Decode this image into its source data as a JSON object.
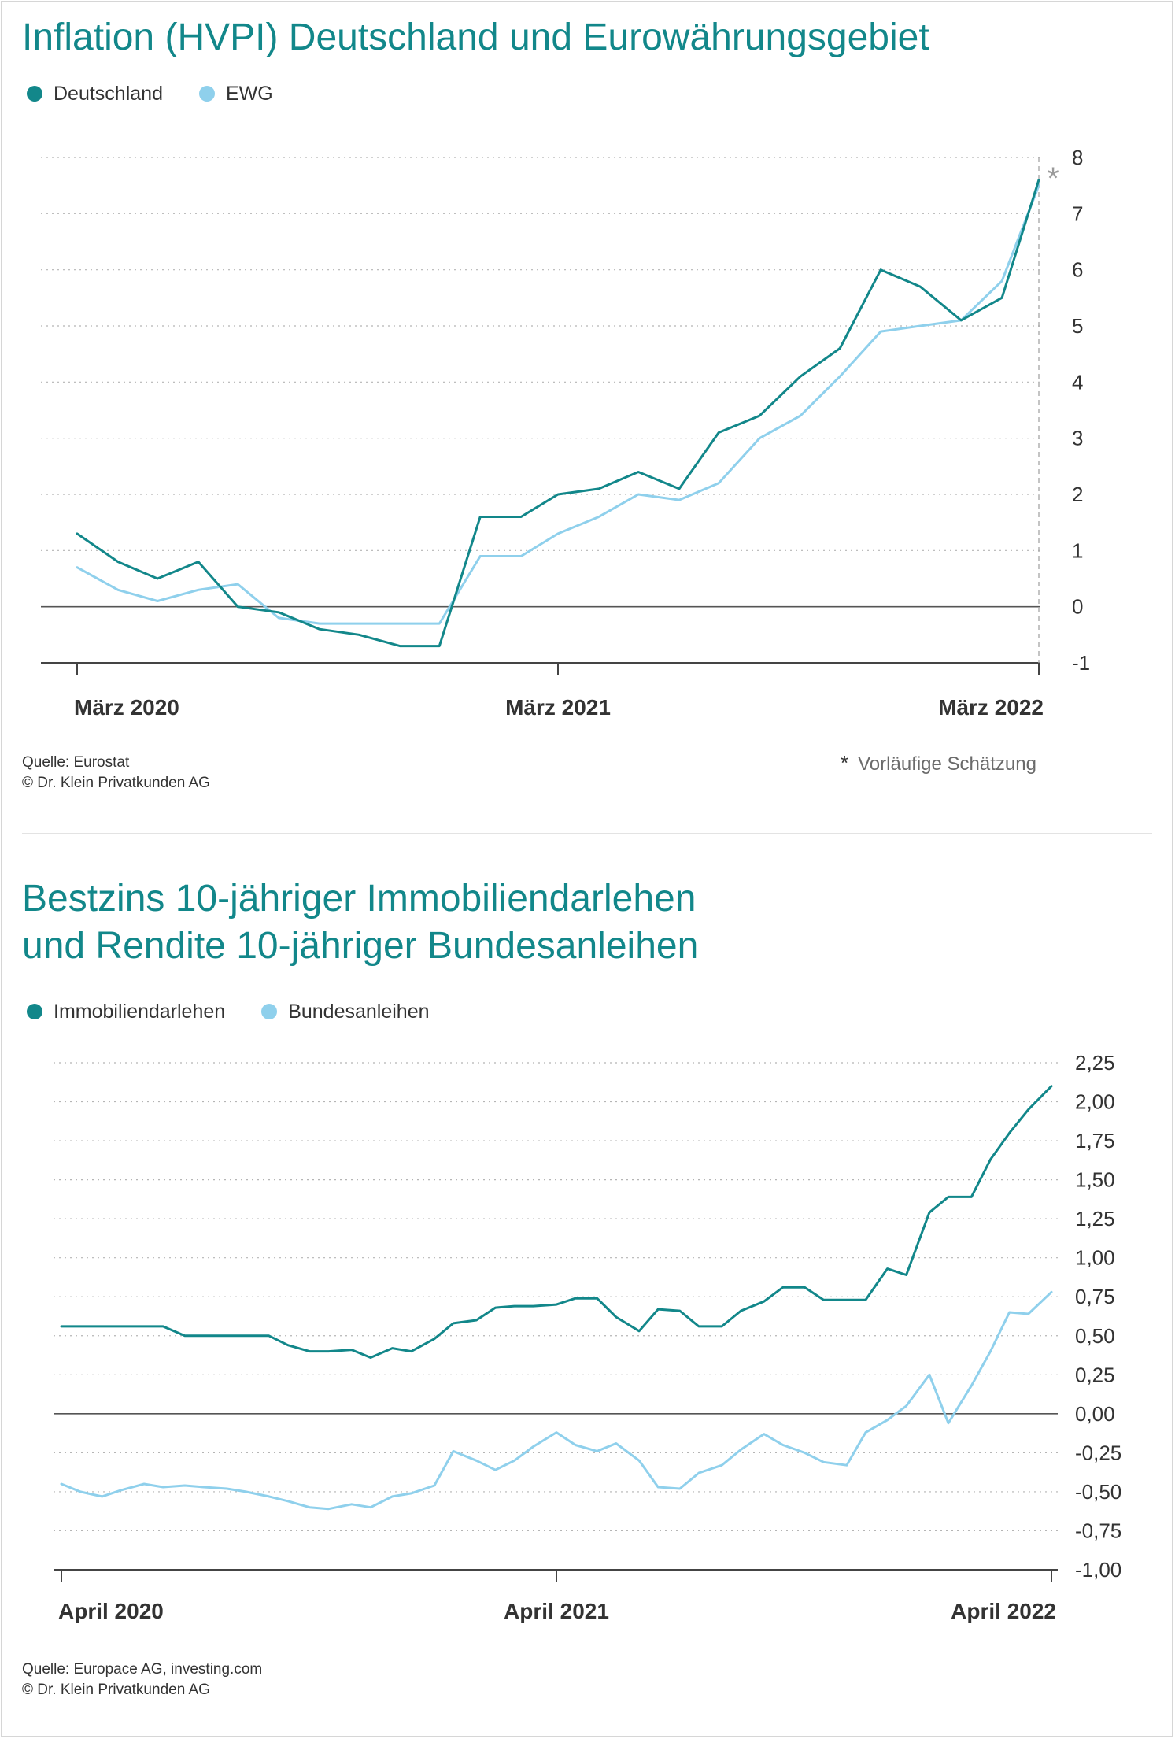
{
  "colors": {
    "primary": "#12878a",
    "secondary": "#8fd0ec",
    "title": "#12878a",
    "grid": "#b5b5b5",
    "axis": "#555555",
    "estimate_marker": "#9a9a9a"
  },
  "chart_data": [
    {
      "type": "line",
      "title": "Inflation (HVPI) Deutschland und Eurowährungsgebiet",
      "legend": "top-left",
      "grid": true,
      "ylim": [
        -1,
        8
      ],
      "yticks": [
        -1,
        0,
        1,
        2,
        3,
        4,
        5,
        6,
        7,
        8
      ],
      "ytick_labels": [
        "-1",
        "0",
        "1",
        "2",
        "3",
        "4",
        "5",
        "6",
        "7",
        "8"
      ],
      "x": [
        "2020-03",
        "2020-04",
        "2020-05",
        "2020-06",
        "2020-07",
        "2020-08",
        "2020-09",
        "2020-10",
        "2020-11",
        "2020-12",
        "2021-01",
        "2021-02",
        "2021-03",
        "2021-04",
        "2021-05",
        "2021-06",
        "2021-07",
        "2021-08",
        "2021-09",
        "2021-10",
        "2021-11",
        "2021-12",
        "2022-01",
        "2022-02",
        "2022-03"
      ],
      "xtick_labels": [
        "März 2020",
        "März 2021",
        "März 2022"
      ],
      "xtick_positions": [
        "2020-03",
        "2021-03",
        "2022-03"
      ],
      "series": [
        {
          "name": "Deutschland",
          "color": "#12878a",
          "values": [
            1.3,
            0.8,
            0.5,
            0.8,
            0.0,
            -0.1,
            -0.4,
            -0.5,
            -0.7,
            -0.7,
            1.6,
            1.6,
            2.0,
            2.1,
            2.4,
            2.1,
            3.1,
            3.4,
            4.1,
            4.6,
            6.0,
            5.7,
            5.1,
            5.5,
            7.6
          ]
        },
        {
          "name": "EWG",
          "color": "#8fd0ec",
          "values": [
            0.7,
            0.3,
            0.1,
            0.3,
            0.4,
            -0.2,
            -0.3,
            -0.3,
            -0.3,
            -0.3,
            0.9,
            0.9,
            1.3,
            1.6,
            2.0,
            1.9,
            2.2,
            3.0,
            3.4,
            4.1,
            4.9,
            5.0,
            5.1,
            5.8,
            7.5
          ]
        }
      ],
      "estimate_marker": "*",
      "note": {
        "symbol": "*",
        "text": "Vorläufige Schätzung"
      },
      "source": "Quelle: Eurostat",
      "copyright": "© Dr. Klein Privatkunden AG"
    },
    {
      "type": "line",
      "title_lines": [
        "Bestzins 10-jähriger Immobiliendarlehen",
        "und Rendite 10-jähriger Bundesanleihen"
      ],
      "legend": "top-left",
      "grid": true,
      "ylim": [
        -1.0,
        2.25
      ],
      "yticks": [
        -1.0,
        -0.75,
        -0.5,
        -0.25,
        0.0,
        0.25,
        0.5,
        0.75,
        1.0,
        1.25,
        1.5,
        1.75,
        2.0,
        2.25
      ],
      "ytick_labels": [
        "-1,00",
        "-0,75",
        "-0,50",
        "-0,25",
        "0,00",
        "0,25",
        "0,50",
        "0,75",
        "1,00",
        "1,25",
        "1,50",
        "1,75",
        "2,00",
        "2,25"
      ],
      "x": [
        "2020-04-01",
        "2020-04-15",
        "2020-05-01",
        "2020-05-15",
        "2020-06-01",
        "2020-06-15",
        "2020-07-01",
        "2020-07-15",
        "2020-08-01",
        "2020-08-15",
        "2020-09-01",
        "2020-09-15",
        "2020-10-01",
        "2020-10-15",
        "2020-11-01",
        "2020-11-15",
        "2020-12-01",
        "2020-12-15",
        "2021-01-01",
        "2021-01-15",
        "2021-02-01",
        "2021-02-15",
        "2021-03-01",
        "2021-03-15",
        "2021-04-01",
        "2021-04-15",
        "2021-05-01",
        "2021-05-15",
        "2021-06-01",
        "2021-06-15",
        "2021-07-01",
        "2021-07-15",
        "2021-08-01",
        "2021-08-15",
        "2021-09-01",
        "2021-09-15",
        "2021-10-01",
        "2021-10-15",
        "2021-11-01",
        "2021-11-15",
        "2021-12-01",
        "2021-12-15",
        "2022-01-01",
        "2022-01-15",
        "2022-02-01",
        "2022-02-15",
        "2022-03-01",
        "2022-03-15",
        "2022-04-01"
      ],
      "xtick_labels": [
        "April 2020",
        "April 2021",
        "April 2022"
      ],
      "xtick_positions": [
        "2020-04-01",
        "2021-04-01",
        "2022-04-01"
      ],
      "series": [
        {
          "name": "Immobiliendarlehen",
          "color": "#12878a",
          "values": [
            0.56,
            0.56,
            0.56,
            0.56,
            0.56,
            0.56,
            0.5,
            0.5,
            0.5,
            0.5,
            0.5,
            0.44,
            0.4,
            0.4,
            0.41,
            0.36,
            0.42,
            0.4,
            0.48,
            0.58,
            0.6,
            0.68,
            0.69,
            0.69,
            0.7,
            0.74,
            0.74,
            0.62,
            0.53,
            0.67,
            0.66,
            0.56,
            0.56,
            0.66,
            0.72,
            0.81,
            0.81,
            0.73,
            0.73,
            0.73,
            0.93,
            0.89,
            1.29,
            1.39,
            1.39,
            1.63,
            1.8,
            1.95,
            2.1
          ]
        },
        {
          "name": "Bundesanleihen",
          "color": "#8fd0ec",
          "values": [
            -0.45,
            -0.5,
            -0.53,
            -0.49,
            -0.45,
            -0.47,
            -0.46,
            -0.47,
            -0.48,
            -0.5,
            -0.53,
            -0.56,
            -0.6,
            -0.61,
            -0.58,
            -0.6,
            -0.53,
            -0.51,
            -0.46,
            -0.24,
            -0.3,
            -0.36,
            -0.3,
            -0.21,
            -0.12,
            -0.2,
            -0.24,
            -0.19,
            -0.3,
            -0.47,
            -0.48,
            -0.38,
            -0.33,
            -0.23,
            -0.13,
            -0.2,
            -0.25,
            -0.31,
            -0.33,
            -0.12,
            -0.04,
            0.05,
            0.25,
            -0.06,
            0.18,
            0.4,
            0.65,
            0.64,
            0.78
          ]
        }
      ],
      "source": "Quelle: Europace AG, investing.com",
      "copyright": "© Dr. Klein Privatkunden AG"
    }
  ]
}
